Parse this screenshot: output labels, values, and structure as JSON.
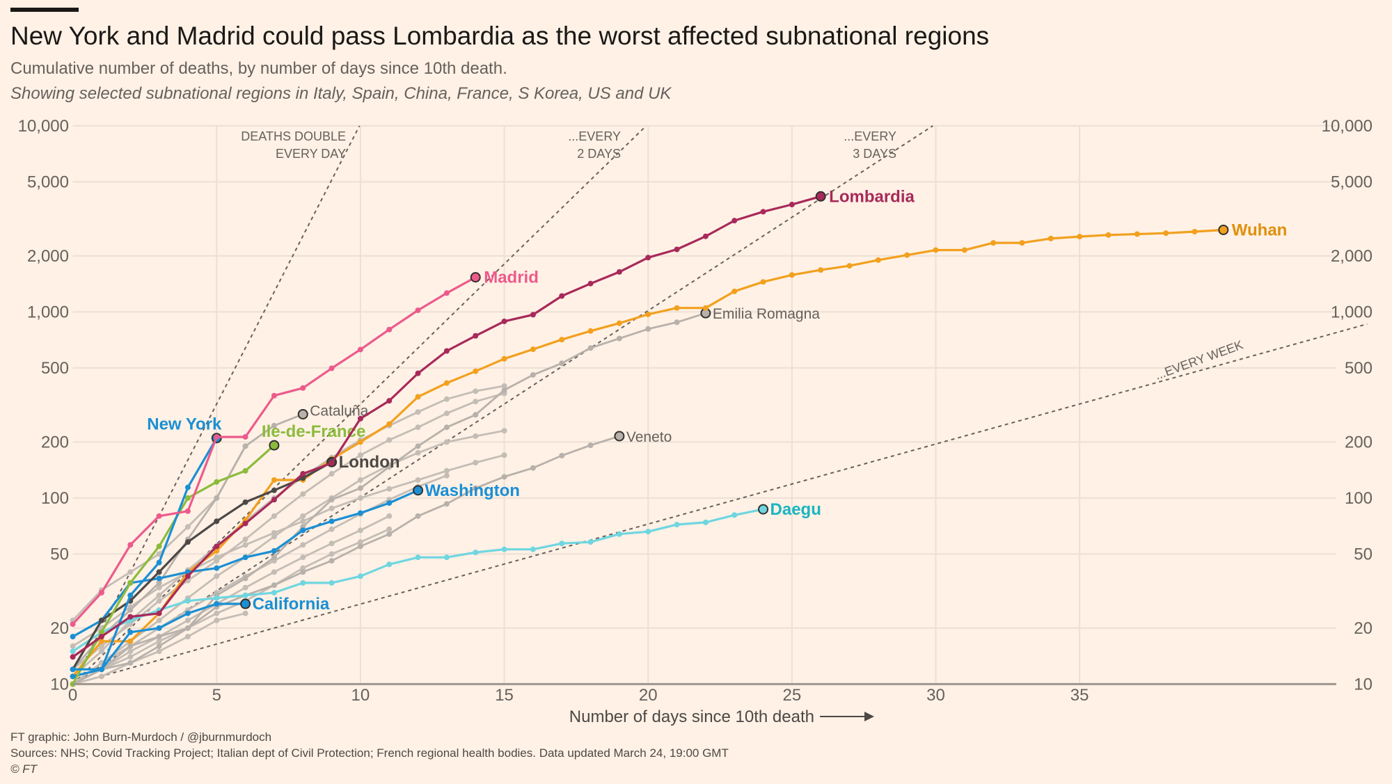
{
  "header": {
    "title": "New York and Madrid could pass Lombardia as the worst affected subnational regions",
    "subtitle": "Cumulative number of deaths, by number of days since 10th death.",
    "subtitle2": "Showing selected subnational regions in Italy, Spain, China, France, S Korea, US and UK"
  },
  "footer": {
    "credit": "FT graphic: John Burn-Murdoch / @jburnmurdoch",
    "sources": "Sources: NHS; Covid Tracking Project; Italian dept of Civil Protection; French regional health bodies. Data updated March 24, 19:00 GMT",
    "copyright": "© FT"
  },
  "chart_data": {
    "type": "line",
    "title": "New York and Madrid could pass Lombardia as the worst affected subnational regions",
    "xlabel": "Number of days since 10th death",
    "ylabel": "",
    "xlim": [
      0,
      44
    ],
    "ylim": [
      10,
      10000
    ],
    "yscale": "log",
    "grid": true,
    "xticks": [
      0,
      5,
      10,
      15,
      20,
      25,
      30,
      35
    ],
    "yticks": [
      10,
      20,
      50,
      100,
      200,
      500,
      1000,
      2000,
      5000,
      10000
    ],
    "ytick_labels": [
      "10",
      "20",
      "50",
      "100",
      "200",
      "500",
      "1,000",
      "2,000",
      "5,000",
      "10,000"
    ],
    "reference_lines": [
      {
        "label": "DEATHS DOUBLE EVERY DAY",
        "label_lines": [
          "DEATHS DOUBLE",
          "EVERY DAY"
        ],
        "doubling_days": 1
      },
      {
        "label": "...EVERY 2 DAYS",
        "label_lines": [
          "...EVERY",
          "2 DAYS"
        ],
        "doubling_days": 2
      },
      {
        "label": "...EVERY 3 DAYS",
        "label_lines": [
          "...EVERY",
          "3 DAYS"
        ],
        "doubling_days": 3
      },
      {
        "label": "...EVERY WEEK",
        "label_lines": [
          "...EVERY WEEK"
        ],
        "doubling_days": 7
      }
    ],
    "series": [
      {
        "values": [
          11,
          15,
          22,
          30,
          41,
          55,
          75,
          100,
          130,
          165,
          205,
          245,
          290,
          340,
          375,
          400
        ],
        "color": "#c4bdb6"
      },
      {
        "values": [
          12,
          16,
          21,
          28,
          36,
          46,
          60,
          80,
          105,
          135,
          170,
          205,
          240,
          285,
          330,
          365
        ],
        "color": "#c4bdb6"
      },
      {
        "values": [
          10,
          13,
          17,
          22,
          29,
          38,
          48,
          62,
          80,
          100,
          125,
          150,
          175,
          200,
          215,
          230
        ],
        "color": "#c4bdb6"
      },
      {
        "values": [
          10,
          12,
          15,
          18,
          22,
          27,
          33,
          40,
          48,
          57,
          67,
          80
        ],
        "color": "#c4bdb6"
      },
      {
        "values": [
          10,
          12,
          14,
          17,
          20,
          24,
          28,
          34,
          42,
          50,
          58,
          68
        ],
        "color": "#c4bdb6"
      },
      {
        "values": [
          22,
          32,
          40,
          50,
          70,
          100,
          190
        ],
        "color": "#c4bdb6"
      },
      {
        "values": [
          10,
          11,
          13,
          15,
          18,
          22,
          24
        ],
        "color": "#c4bdb6"
      },
      {
        "values": [
          10,
          13,
          16,
          20,
          25,
          31,
          38,
          46,
          56,
          68,
          82,
          98,
          115,
          132
        ],
        "color": "#c4bdb6"
      },
      {
        "values": [
          16,
          20,
          26,
          33,
          40,
          48,
          56,
          65,
          75,
          88,
          100,
          112,
          125,
          140,
          155,
          170
        ],
        "color": "#c4bdb6"
      },
      {
        "name": "Emilia Romagna",
        "values": [
          10,
          12,
          16,
          18,
          20,
          30,
          37,
          48,
          70,
          98,
          113,
          147,
          190,
          240,
          280,
          380,
          459,
          530,
          640,
          720,
          810,
          880,
          985
        ],
        "color": "#b8b1ab",
        "highlight": false
      },
      {
        "name": "Cataluña",
        "values": [
          12,
          18,
          25,
          35,
          60,
          100,
          190,
          245,
          282
        ],
        "color": "#b8b1ab",
        "highlight": false
      },
      {
        "name": "Veneto",
        "values": [
          10,
          12,
          13,
          16,
          20,
          26,
          30,
          34,
          40,
          46,
          55,
          64,
          80,
          93,
          113,
          130,
          145,
          169,
          192,
          215
        ],
        "color": "#b8b1ab",
        "highlight": false
      },
      {
        "name": "Wuhan",
        "values": [
          11,
          17,
          17,
          24,
          40,
          52,
          76,
          125,
          125,
          162,
          200,
          250,
          350,
          415,
          480,
          560,
          630,
          710,
          790,
          870,
          970,
          1050,
          1050,
          1290,
          1450,
          1580,
          1680,
          1770,
          1900,
          2020,
          2150,
          2150,
          2350,
          2350,
          2480,
          2540,
          2590,
          2620,
          2650,
          2700,
          2760
        ],
        "color": "#f2a01e",
        "highlight": true
      },
      {
        "name": "Daegu",
        "values": [
          15,
          19,
          22,
          25,
          28,
          29,
          30,
          31,
          35,
          35,
          38,
          44,
          48,
          48,
          51,
          53,
          53,
          57,
          58,
          64,
          66,
          72,
          74,
          81,
          87
        ],
        "color": "#6fd6e0",
        "highlight": true
      },
      {
        "name": "California",
        "values": [
          11,
          12,
          19,
          20,
          24,
          27,
          27
        ],
        "color": "#1a8fd4",
        "highlight": true
      },
      {
        "name": "Washington",
        "values": [
          18,
          22,
          35,
          37,
          40,
          42,
          48,
          52,
          67,
          75,
          83,
          94,
          110
        ],
        "color": "#1a8fd4",
        "highlight": true
      },
      {
        "name": "London",
        "values": [
          12,
          22,
          28,
          40,
          58,
          75,
          95,
          110,
          128,
          156
        ],
        "color": "#4d4845",
        "highlight": true
      },
      {
        "name": "Ile-de-France",
        "values": [
          10,
          19,
          35,
          55,
          100,
          122,
          140,
          192
        ],
        "color": "#8cbb3c",
        "highlight": true
      },
      {
        "name": "New York",
        "values": [
          12,
          12,
          30,
          45,
          114,
          210
        ],
        "color": "#1a8fd4",
        "highlight": true
      },
      {
        "name": "Lombardia",
        "values": [
          14,
          18,
          23,
          24,
          38,
          55,
          73,
          98,
          135,
          154,
          267,
          333,
          468,
          617,
          744,
          890,
          966,
          1218,
          1420,
          1640,
          1959,
          2168,
          2549,
          3095,
          3456,
          3776,
          4178
        ],
        "color": "#a8295a",
        "highlight": true
      },
      {
        "name": "Madrid",
        "values": [
          21,
          31,
          56,
          80,
          85,
          213,
          213,
          355,
          390,
          498,
          628,
          804,
          1021,
          1263,
          1535
        ],
        "color": "#ed5a8c",
        "highlight": true
      }
    ]
  }
}
